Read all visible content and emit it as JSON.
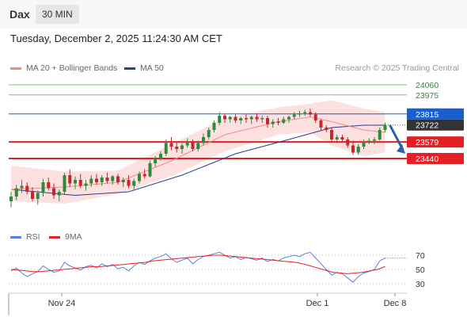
{
  "header": {
    "symbol": "Dax",
    "interval": "30 MIN"
  },
  "datetime": "Tuesday, December 2, 2025 11:24:30 AM CET",
  "legend": {
    "ma20": "MA 20 + Bollinger Bands",
    "ma50": "MA 50",
    "credit": "Research © 2025 Trading Central"
  },
  "rsi_legend": {
    "rsi": "RSI",
    "ma9": "9MA"
  },
  "colors": {
    "ma20": "#f28a8a",
    "ma50": "#2b3f8c",
    "bands": "#fcd6d6",
    "up": "#2e8b3d",
    "down": "#c8262c",
    "support": "#e52025",
    "resistance_blue": "#1a5fd0",
    "target_green": "#7cc36a",
    "current": "#333333",
    "rsi": "#5b7fd6",
    "rsi_ma": "#e52025"
  },
  "chart_data": {
    "type": "candlestick",
    "x_tick_labels": [
      "Nov 24",
      "Dec 1",
      "Dec 8"
    ],
    "price_levels": [
      {
        "value": 24060,
        "label": "24060",
        "kind": "target"
      },
      {
        "value": 23975,
        "label": "23975",
        "kind": "target"
      },
      {
        "value": 23815,
        "label": "23815",
        "kind": "resistance"
      },
      {
        "value": 23722,
        "label": "23722",
        "kind": "current"
      },
      {
        "value": 23579,
        "label": "23579",
        "kind": "support"
      },
      {
        "value": 23440,
        "label": "23440",
        "kind": "support"
      }
    ],
    "candles": [
      [
        23080,
        23160,
        23030,
        23120
      ],
      [
        23120,
        23220,
        23090,
        23190
      ],
      [
        23190,
        23260,
        23150,
        23210
      ],
      [
        23210,
        23240,
        23140,
        23160
      ],
      [
        23160,
        23200,
        23080,
        23100
      ],
      [
        23100,
        23170,
        23050,
        23150
      ],
      [
        23150,
        23270,
        23120,
        23240
      ],
      [
        23240,
        23280,
        23170,
        23190
      ],
      [
        23190,
        23230,
        23100,
        23130
      ],
      [
        23130,
        23180,
        23080,
        23160
      ],
      [
        23160,
        23320,
        23140,
        23300
      ],
      [
        23300,
        23350,
        23200,
        23230
      ],
      [
        23230,
        23290,
        23180,
        23260
      ],
      [
        23260,
        23310,
        23190,
        23210
      ],
      [
        23210,
        23260,
        23170,
        23230
      ],
      [
        23230,
        23300,
        23200,
        23270
      ],
      [
        23270,
        23310,
        23220,
        23240
      ],
      [
        23240,
        23300,
        23210,
        23280
      ],
      [
        23280,
        23320,
        23230,
        23250
      ],
      [
        23250,
        23300,
        23220,
        23290
      ],
      [
        23290,
        23310,
        23220,
        23240
      ],
      [
        23240,
        23280,
        23200,
        23260
      ],
      [
        23260,
        23300,
        23190,
        23210
      ],
      [
        23210,
        23270,
        23180,
        23250
      ],
      [
        23250,
        23330,
        23230,
        23310
      ],
      [
        23310,
        23350,
        23270,
        23290
      ],
      [
        23290,
        23420,
        23280,
        23400
      ],
      [
        23400,
        23460,
        23370,
        23440
      ],
      [
        23440,
        23500,
        23420,
        23480
      ],
      [
        23480,
        23600,
        23460,
        23570
      ],
      [
        23570,
        23620,
        23510,
        23540
      ],
      [
        23540,
        23580,
        23490,
        23520
      ],
      [
        23520,
        23570,
        23480,
        23550
      ],
      [
        23550,
        23610,
        23530,
        23580
      ],
      [
        23580,
        23600,
        23500,
        23520
      ],
      [
        23520,
        23590,
        23500,
        23570
      ],
      [
        23570,
        23650,
        23550,
        23620
      ],
      [
        23620,
        23700,
        23600,
        23680
      ],
      [
        23680,
        23760,
        23660,
        23740
      ],
      [
        23740,
        23830,
        23720,
        23800
      ],
      [
        23800,
        23820,
        23740,
        23770
      ],
      [
        23770,
        23800,
        23740,
        23790
      ],
      [
        23790,
        23810,
        23740,
        23760
      ],
      [
        23760,
        23790,
        23730,
        23780
      ],
      [
        23780,
        23810,
        23740,
        23770
      ],
      [
        23770,
        23800,
        23730,
        23790
      ],
      [
        23790,
        23820,
        23750,
        23770
      ],
      [
        23770,
        23800,
        23740,
        23780
      ],
      [
        23780,
        23800,
        23700,
        23730
      ],
      [
        23730,
        23770,
        23700,
        23750
      ],
      [
        23750,
        23780,
        23720,
        23740
      ],
      [
        23740,
        23790,
        23730,
        23770
      ],
      [
        23770,
        23800,
        23740,
        23790
      ],
      [
        23790,
        23830,
        23770,
        23810
      ],
      [
        23810,
        23840,
        23790,
        23820
      ],
      [
        23820,
        23850,
        23800,
        23830
      ],
      [
        23830,
        23860,
        23790,
        23810
      ],
      [
        23810,
        23830,
        23740,
        23760
      ],
      [
        23760,
        23770,
        23680,
        23700
      ],
      [
        23700,
        23720,
        23660,
        23680
      ],
      [
        23680,
        23700,
        23580,
        23600
      ],
      [
        23600,
        23640,
        23570,
        23620
      ],
      [
        23620,
        23640,
        23580,
        23600
      ],
      [
        23600,
        23620,
        23530,
        23550
      ],
      [
        23550,
        23590,
        23470,
        23490
      ],
      [
        23490,
        23560,
        23470,
        23540
      ],
      [
        23540,
        23600,
        23520,
        23580
      ],
      [
        23580,
        23610,
        23560,
        23590
      ],
      [
        23590,
        23620,
        23560,
        23600
      ],
      [
        23600,
        23700,
        23590,
        23680
      ],
      [
        23680,
        23740,
        23660,
        23722
      ]
    ],
    "ma20": [
      [
        0,
        23180
      ],
      [
        10,
        23200
      ],
      [
        20,
        23240
      ],
      [
        30,
        23420
      ],
      [
        40,
        23640
      ],
      [
        50,
        23750
      ],
      [
        56,
        23790
      ],
      [
        60,
        23750
      ],
      [
        66,
        23680
      ],
      [
        70,
        23660
      ]
    ],
    "ma50": [
      [
        0,
        23180
      ],
      [
        12,
        23130
      ],
      [
        22,
        23160
      ],
      [
        32,
        23300
      ],
      [
        42,
        23480
      ],
      [
        52,
        23600
      ],
      [
        60,
        23700
      ],
      [
        66,
        23720
      ],
      [
        70,
        23720
      ]
    ],
    "bb_upper": [
      [
        0,
        23380
      ],
      [
        10,
        23330
      ],
      [
        20,
        23340
      ],
      [
        30,
        23560
      ],
      [
        40,
        23780
      ],
      [
        50,
        23870
      ],
      [
        56,
        23900
      ],
      [
        60,
        23930
      ],
      [
        66,
        23860
      ],
      [
        70,
        23830
      ]
    ],
    "bb_lower": [
      [
        0,
        23080
      ],
      [
        10,
        23060
      ],
      [
        20,
        23140
      ],
      [
        30,
        23290
      ],
      [
        40,
        23500
      ],
      [
        50,
        23640
      ],
      [
        56,
        23660
      ],
      [
        60,
        23550
      ],
      [
        66,
        23460
      ],
      [
        70,
        23490
      ]
    ],
    "projection": {
      "from": 23722,
      "to": 23440
    },
    "rsi": {
      "ticks": [
        70,
        50,
        30
      ],
      "ylim": [
        20,
        80
      ],
      "rsi_values": [
        48,
        52,
        45,
        40,
        44,
        47,
        55,
        50,
        46,
        48,
        60,
        55,
        52,
        49,
        54,
        56,
        52,
        58,
        54,
        57,
        51,
        53,
        48,
        55,
        60,
        57,
        62,
        66,
        68,
        72,
        65,
        60,
        63,
        66,
        58,
        64,
        68,
        70,
        72,
        74,
        70,
        66,
        68,
        64,
        67,
        65,
        63,
        66,
        61,
        64,
        62,
        66,
        68,
        70,
        68,
        72,
        74,
        66,
        58,
        50,
        42,
        46,
        44,
        38,
        32,
        40,
        45,
        47,
        50,
        62,
        66
      ],
      "ma_values": [
        50,
        49,
        48,
        47,
        47,
        48,
        49,
        50,
        51,
        52,
        53,
        54,
        54,
        55,
        56,
        57,
        58,
        59,
        60,
        62,
        63,
        64,
        65,
        66,
        67,
        68,
        69,
        70,
        70,
        69,
        68,
        67,
        66,
        65,
        64,
        63,
        62,
        61,
        60,
        58,
        55,
        52,
        49,
        46,
        45,
        44,
        45,
        46,
        48,
        50,
        54
      ]
    }
  }
}
